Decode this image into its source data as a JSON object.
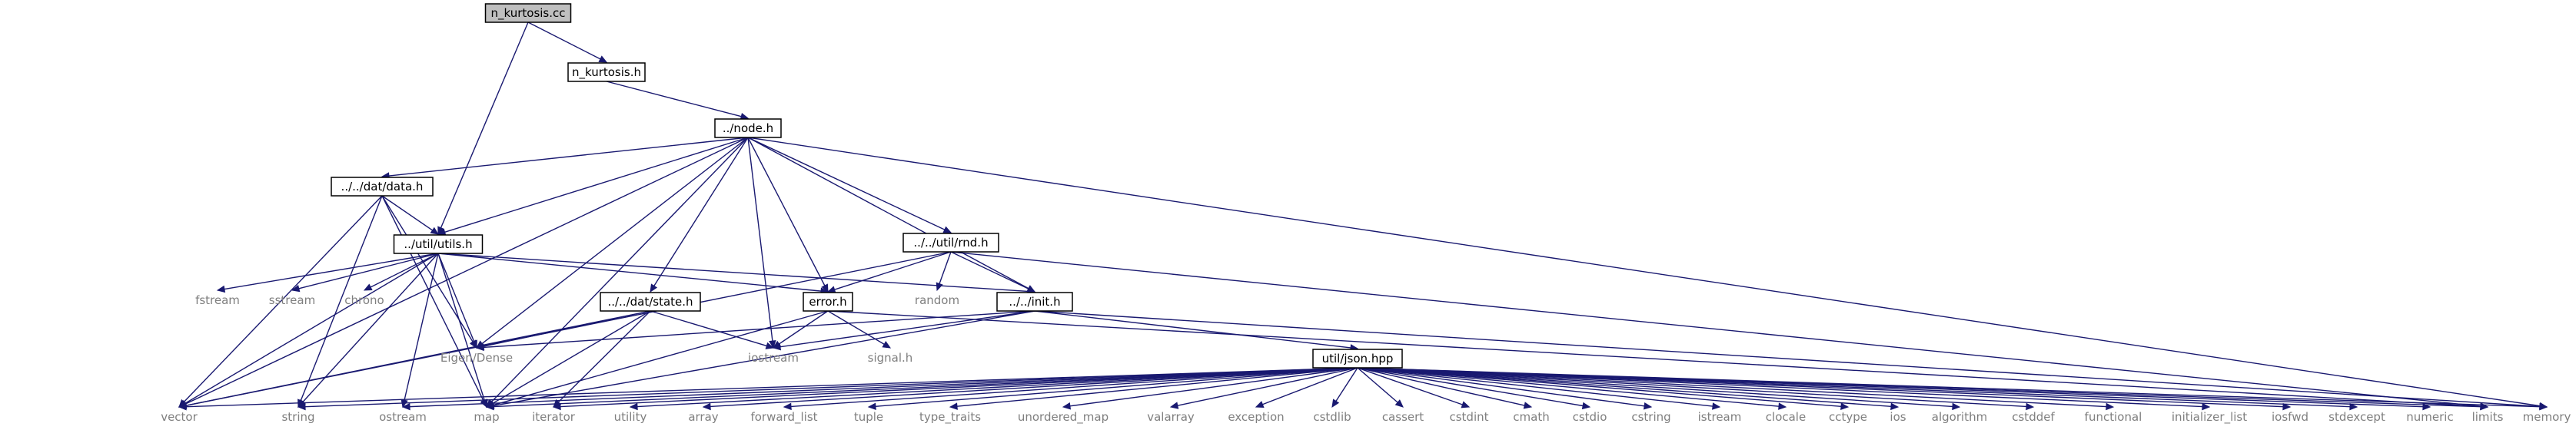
{
  "graph": {
    "edge_color": "#191970",
    "root_fill": "#bfbfbf",
    "node_fill": "#ffffff",
    "leaf_text_color": "#7f7f7f",
    "nodes": [
      {
        "id": "n_kurtosis_cc",
        "label": "n_kurtosis.cc",
        "kind": "root"
      },
      {
        "id": "n_kurtosis_h",
        "label": "n_kurtosis.h",
        "kind": "header"
      },
      {
        "id": "node_h",
        "label": "../node.h",
        "kind": "header"
      },
      {
        "id": "data_h",
        "label": "../../dat/data.h",
        "kind": "header"
      },
      {
        "id": "utils_h",
        "label": "../util/utils.h",
        "kind": "header"
      },
      {
        "id": "rnd_h",
        "label": "../../util/rnd.h",
        "kind": "header"
      },
      {
        "id": "state_h",
        "label": "../../dat/state.h",
        "kind": "header"
      },
      {
        "id": "error_h",
        "label": "error.h",
        "kind": "header"
      },
      {
        "id": "init_h",
        "label": "../../init.h",
        "kind": "header"
      },
      {
        "id": "json_hpp",
        "label": "util/json.hpp",
        "kind": "header"
      },
      {
        "id": "fstream",
        "label": "fstream",
        "kind": "system"
      },
      {
        "id": "sstream",
        "label": "sstream",
        "kind": "system"
      },
      {
        "id": "chrono",
        "label": "chrono",
        "kind": "system"
      },
      {
        "id": "random",
        "label": "random",
        "kind": "system"
      },
      {
        "id": "eigen",
        "label": "Eigen/Dense",
        "kind": "system"
      },
      {
        "id": "iostream",
        "label": "iostream",
        "kind": "system"
      },
      {
        "id": "signal_h",
        "label": "signal.h",
        "kind": "system"
      },
      {
        "id": "vector",
        "label": "vector",
        "kind": "system"
      },
      {
        "id": "string",
        "label": "string",
        "kind": "system"
      },
      {
        "id": "ostream",
        "label": "ostream",
        "kind": "system"
      },
      {
        "id": "map",
        "label": "map",
        "kind": "system"
      },
      {
        "id": "iterator",
        "label": "iterator",
        "kind": "system"
      },
      {
        "id": "utility",
        "label": "utility",
        "kind": "system"
      },
      {
        "id": "array",
        "label": "array",
        "kind": "system"
      },
      {
        "id": "forward_list",
        "label": "forward_list",
        "kind": "system"
      },
      {
        "id": "tuple",
        "label": "tuple",
        "kind": "system"
      },
      {
        "id": "type_traits",
        "label": "type_traits",
        "kind": "system"
      },
      {
        "id": "unordered_map",
        "label": "unordered_map",
        "kind": "system"
      },
      {
        "id": "valarray",
        "label": "valarray",
        "kind": "system"
      },
      {
        "id": "exception",
        "label": "exception",
        "kind": "system"
      },
      {
        "id": "cstdlib",
        "label": "cstdlib",
        "kind": "system"
      },
      {
        "id": "cassert",
        "label": "cassert",
        "kind": "system"
      },
      {
        "id": "cstdint",
        "label": "cstdint",
        "kind": "system"
      },
      {
        "id": "cmath",
        "label": "cmath",
        "kind": "system"
      },
      {
        "id": "cstdio",
        "label": "cstdio",
        "kind": "system"
      },
      {
        "id": "cstring",
        "label": "cstring",
        "kind": "system"
      },
      {
        "id": "istream",
        "label": "istream",
        "kind": "system"
      },
      {
        "id": "clocale",
        "label": "clocale",
        "kind": "system"
      },
      {
        "id": "cctype",
        "label": "cctype",
        "kind": "system"
      },
      {
        "id": "ios",
        "label": "ios",
        "kind": "system"
      },
      {
        "id": "algorithm",
        "label": "algorithm",
        "kind": "system"
      },
      {
        "id": "cstddef",
        "label": "cstddef",
        "kind": "system"
      },
      {
        "id": "functional",
        "label": "functional",
        "kind": "system"
      },
      {
        "id": "initializer_list",
        "label": "initializer_list",
        "kind": "system"
      },
      {
        "id": "iosfwd",
        "label": "iosfwd",
        "kind": "system"
      },
      {
        "id": "stdexcept",
        "label": "stdexcept",
        "kind": "system"
      },
      {
        "id": "numeric",
        "label": "numeric",
        "kind": "system"
      },
      {
        "id": "limits",
        "label": "limits",
        "kind": "system"
      },
      {
        "id": "memory",
        "label": "memory",
        "kind": "system"
      }
    ],
    "edges": [
      [
        "n_kurtosis_cc",
        "n_kurtosis_h"
      ],
      [
        "n_kurtosis_cc",
        "utils_h"
      ],
      [
        "n_kurtosis_h",
        "node_h"
      ],
      [
        "node_h",
        "data_h"
      ],
      [
        "node_h",
        "utils_h"
      ],
      [
        "node_h",
        "rnd_h"
      ],
      [
        "node_h",
        "state_h"
      ],
      [
        "node_h",
        "error_h"
      ],
      [
        "node_h",
        "init_h"
      ],
      [
        "node_h",
        "eigen"
      ],
      [
        "node_h",
        "iostream"
      ],
      [
        "node_h",
        "vector"
      ],
      [
        "node_h",
        "map"
      ],
      [
        "node_h",
        "memory"
      ],
      [
        "data_h",
        "utils_h"
      ],
      [
        "data_h",
        "vector"
      ],
      [
        "data_h",
        "string"
      ],
      [
        "data_h",
        "eigen"
      ],
      [
        "data_h",
        "map"
      ],
      [
        "utils_h",
        "fstream"
      ],
      [
        "utils_h",
        "sstream"
      ],
      [
        "utils_h",
        "chrono"
      ],
      [
        "utils_h",
        "eigen"
      ],
      [
        "utils_h",
        "error_h"
      ],
      [
        "utils_h",
        "init_h"
      ],
      [
        "utils_h",
        "vector"
      ],
      [
        "utils_h",
        "string"
      ],
      [
        "utils_h",
        "ostream"
      ],
      [
        "utils_h",
        "map"
      ],
      [
        "rnd_h",
        "random"
      ],
      [
        "rnd_h",
        "error_h"
      ],
      [
        "rnd_h",
        "init_h"
      ],
      [
        "rnd_h",
        "vector"
      ],
      [
        "rnd_h",
        "limits"
      ],
      [
        "state_h",
        "eigen"
      ],
      [
        "state_h",
        "iostream"
      ],
      [
        "state_h",
        "vector"
      ],
      [
        "state_h",
        "map"
      ],
      [
        "state_h",
        "iterator"
      ],
      [
        "error_h",
        "iostream"
      ],
      [
        "error_h",
        "signal_h"
      ],
      [
        "error_h",
        "map"
      ],
      [
        "error_h",
        "limits"
      ],
      [
        "init_h",
        "json_hpp"
      ],
      [
        "init_h",
        "eigen"
      ],
      [
        "init_h",
        "iostream"
      ],
      [
        "init_h",
        "map"
      ],
      [
        "init_h",
        "memory"
      ],
      [
        "json_hpp",
        "vector"
      ],
      [
        "json_hpp",
        "string"
      ],
      [
        "json_hpp",
        "ostream"
      ],
      [
        "json_hpp",
        "map"
      ],
      [
        "json_hpp",
        "iterator"
      ],
      [
        "json_hpp",
        "utility"
      ],
      [
        "json_hpp",
        "array"
      ],
      [
        "json_hpp",
        "forward_list"
      ],
      [
        "json_hpp",
        "tuple"
      ],
      [
        "json_hpp",
        "type_traits"
      ],
      [
        "json_hpp",
        "unordered_map"
      ],
      [
        "json_hpp",
        "valarray"
      ],
      [
        "json_hpp",
        "exception"
      ],
      [
        "json_hpp",
        "cstdlib"
      ],
      [
        "json_hpp",
        "cassert"
      ],
      [
        "json_hpp",
        "cstdint"
      ],
      [
        "json_hpp",
        "cmath"
      ],
      [
        "json_hpp",
        "cstdio"
      ],
      [
        "json_hpp",
        "cstring"
      ],
      [
        "json_hpp",
        "istream"
      ],
      [
        "json_hpp",
        "clocale"
      ],
      [
        "json_hpp",
        "cctype"
      ],
      [
        "json_hpp",
        "ios"
      ],
      [
        "json_hpp",
        "algorithm"
      ],
      [
        "json_hpp",
        "cstddef"
      ],
      [
        "json_hpp",
        "functional"
      ],
      [
        "json_hpp",
        "initializer_list"
      ],
      [
        "json_hpp",
        "iosfwd"
      ],
      [
        "json_hpp",
        "stdexcept"
      ],
      [
        "json_hpp",
        "numeric"
      ],
      [
        "json_hpp",
        "limits"
      ],
      [
        "json_hpp",
        "memory"
      ]
    ]
  }
}
